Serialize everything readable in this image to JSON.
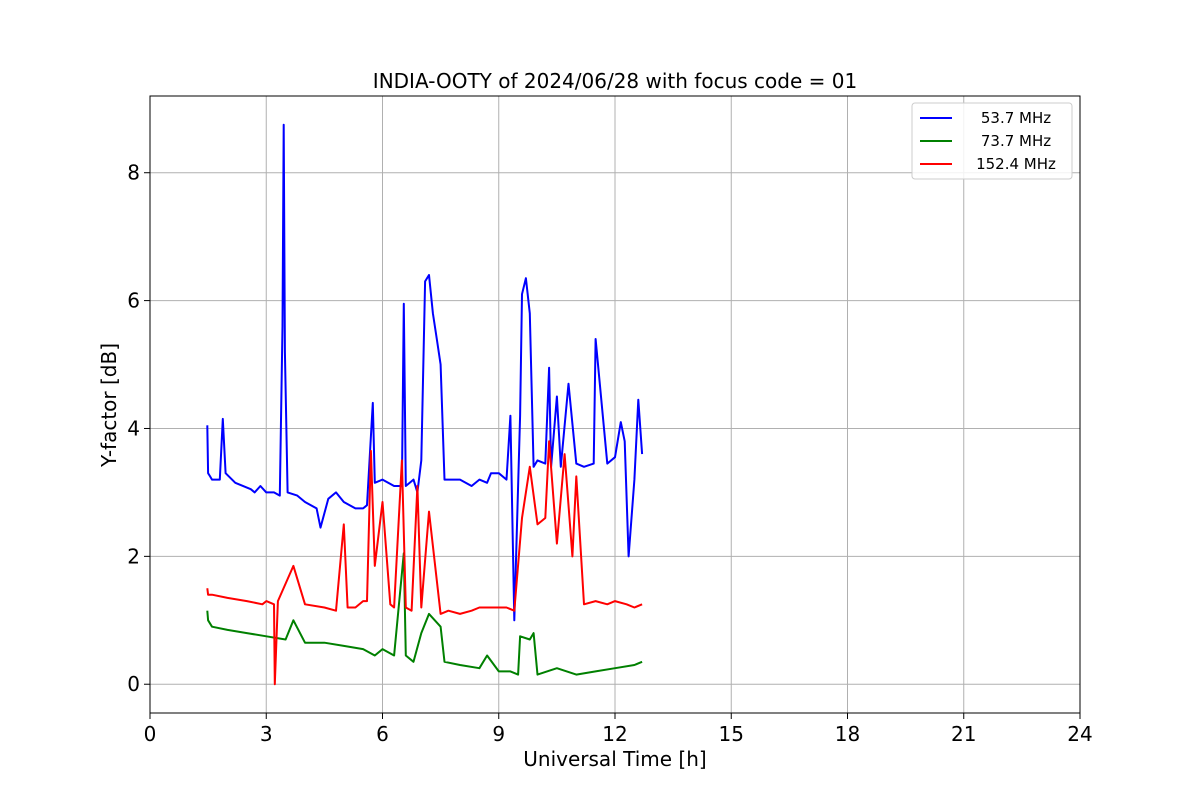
{
  "chart_data": {
    "type": "line",
    "title": "INDIA-OOTY of 2024/06/28 with focus code = 01",
    "xlabel": "Universal Time [h]",
    "ylabel": "Y-factor [dB]",
    "xlim": [
      0,
      24
    ],
    "ylim": [
      -0.45,
      9.2
    ],
    "xticks": [
      0,
      3,
      6,
      9,
      12,
      15,
      18,
      21,
      24
    ],
    "yticks": [
      0,
      2,
      4,
      6,
      8
    ],
    "grid": true,
    "legend_position": "top-right",
    "series": [
      {
        "name": "53.7 MHz",
        "color": "#0000ff",
        "x": [
          1.48,
          1.5,
          1.55,
          1.6,
          1.8,
          1.88,
          1.95,
          2.2,
          2.6,
          2.7,
          2.85,
          3.0,
          3.2,
          3.35,
          3.42,
          3.45,
          3.48,
          3.55,
          3.8,
          4.0,
          4.3,
          4.4,
          4.6,
          4.8,
          5.0,
          5.3,
          5.5,
          5.6,
          5.75,
          5.8,
          6.0,
          6.3,
          6.5,
          6.55,
          6.6,
          6.8,
          6.9,
          7.0,
          7.1,
          7.2,
          7.3,
          7.4,
          7.5,
          7.6,
          7.7,
          8.0,
          8.3,
          8.5,
          8.7,
          8.8,
          9.0,
          9.2,
          9.3,
          9.4,
          9.55,
          9.6,
          9.7,
          9.8,
          9.9,
          10.0,
          10.2,
          10.3,
          10.35,
          10.5,
          10.6,
          10.8,
          11.0,
          11.2,
          11.45,
          11.5,
          11.8,
          12.0,
          12.15,
          12.25,
          12.35,
          12.5,
          12.6,
          12.7
        ],
        "values": [
          4.05,
          3.3,
          3.25,
          3.2,
          3.2,
          4.15,
          3.3,
          3.15,
          3.05,
          3.0,
          3.1,
          3.0,
          3.0,
          2.95,
          5.6,
          8.75,
          5.2,
          3.0,
          2.95,
          2.85,
          2.75,
          2.45,
          2.9,
          3.0,
          2.85,
          2.75,
          2.75,
          2.8,
          4.4,
          3.15,
          3.2,
          3.1,
          3.1,
          5.95,
          3.1,
          3.2,
          3.0,
          3.5,
          6.3,
          6.4,
          5.8,
          5.4,
          5.0,
          3.2,
          3.2,
          3.2,
          3.1,
          3.2,
          3.15,
          3.3,
          3.3,
          3.2,
          4.2,
          1.0,
          4.2,
          6.1,
          6.35,
          5.8,
          3.4,
          3.5,
          3.45,
          4.95,
          3.4,
          4.5,
          3.4,
          4.7,
          3.45,
          3.4,
          3.45,
          5.4,
          3.45,
          3.55,
          4.1,
          3.8,
          2.0,
          3.2,
          4.45,
          3.6
        ]
      },
      {
        "name": "73.7 MHz",
        "color": "#008000",
        "x": [
          1.48,
          1.5,
          1.6,
          2.0,
          2.5,
          3.0,
          3.5,
          3.7,
          4.0,
          4.5,
          5.0,
          5.5,
          5.8,
          6.0,
          6.3,
          6.55,
          6.6,
          6.8,
          7.0,
          7.2,
          7.35,
          7.5,
          7.6,
          8.0,
          8.5,
          8.7,
          9.0,
          9.3,
          9.5,
          9.55,
          9.8,
          9.9,
          10.0,
          10.5,
          11.0,
          11.5,
          12.0,
          12.5,
          12.7
        ],
        "values": [
          1.15,
          1.0,
          0.9,
          0.85,
          0.8,
          0.75,
          0.7,
          1.0,
          0.65,
          0.65,
          0.6,
          0.55,
          0.45,
          0.55,
          0.45,
          2.05,
          0.45,
          0.35,
          0.8,
          1.1,
          1.0,
          0.9,
          0.35,
          0.3,
          0.25,
          0.45,
          0.2,
          0.2,
          0.15,
          0.75,
          0.7,
          0.8,
          0.15,
          0.25,
          0.15,
          0.2,
          0.25,
          0.3,
          0.35
        ]
      },
      {
        "name": "152.4 MHz",
        "color": "#ff0000",
        "x": [
          1.48,
          1.5,
          1.6,
          2.0,
          2.5,
          2.9,
          3.0,
          3.2,
          3.22,
          3.3,
          3.7,
          4.0,
          4.5,
          4.8,
          5.0,
          5.1,
          5.3,
          5.5,
          5.6,
          5.7,
          5.8,
          6.0,
          6.2,
          6.3,
          6.5,
          6.6,
          6.75,
          6.9,
          7.0,
          7.2,
          7.5,
          7.7,
          8.0,
          8.3,
          8.5,
          9.0,
          9.2,
          9.4,
          9.6,
          9.8,
          10.0,
          10.2,
          10.3,
          10.5,
          10.7,
          10.9,
          11.0,
          11.2,
          11.5,
          11.8,
          12.0,
          12.3,
          12.5,
          12.7
        ],
        "values": [
          1.5,
          1.4,
          1.4,
          1.35,
          1.3,
          1.25,
          1.3,
          1.25,
          0.0,
          1.3,
          1.85,
          1.25,
          1.2,
          1.15,
          2.5,
          1.2,
          1.2,
          1.3,
          1.3,
          3.65,
          1.85,
          2.85,
          1.25,
          1.2,
          3.5,
          1.2,
          1.15,
          3.1,
          1.2,
          2.7,
          1.1,
          1.15,
          1.1,
          1.15,
          1.2,
          1.2,
          1.2,
          1.15,
          2.6,
          3.4,
          2.5,
          2.6,
          3.8,
          2.2,
          3.6,
          2.0,
          3.25,
          1.25,
          1.3,
          1.25,
          1.3,
          1.25,
          1.2,
          1.25
        ]
      }
    ]
  }
}
